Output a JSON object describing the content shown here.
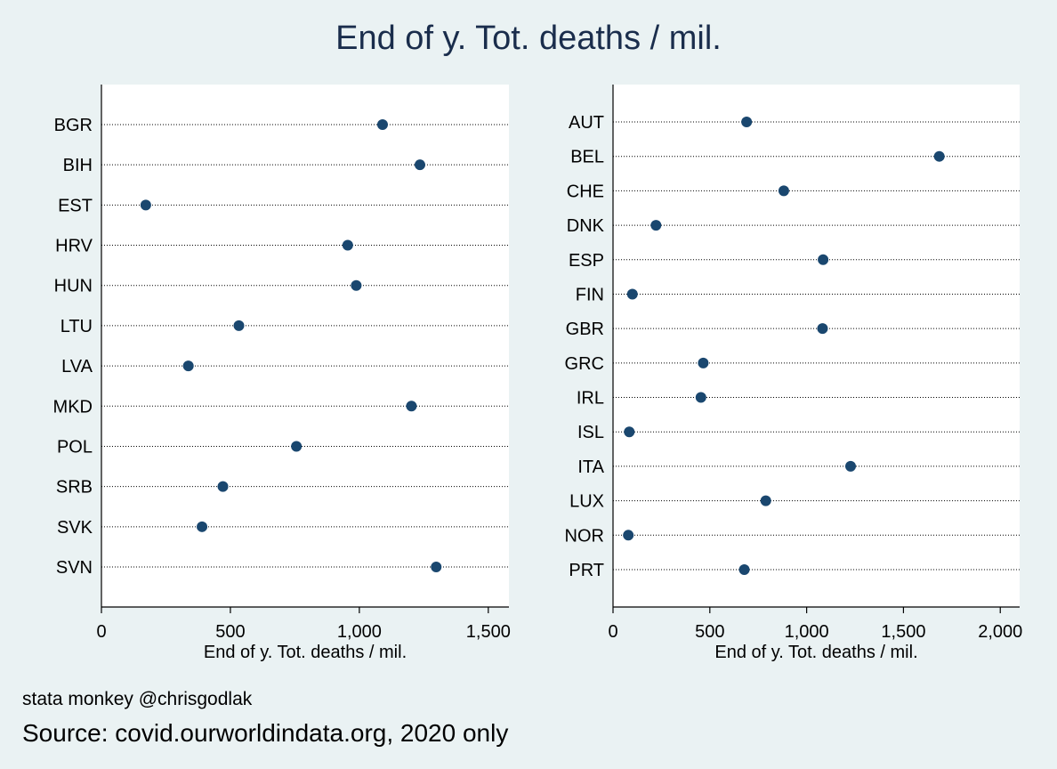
{
  "title": "End of y. Tot. deaths / mil.",
  "note_author": "stata monkey @chrisgodlak",
  "note_source": "Source: covid.ourworldindata.org, 2020 only",
  "colors": {
    "background": "#eaf2f3",
    "plot_background": "#ffffff",
    "marker": "#1a476f",
    "title": "#1a2d4c"
  },
  "chart_data": [
    {
      "type": "scatter",
      "style": "dot plot",
      "xlabel": "End of y. Tot. deaths / mil.",
      "xlim": [
        0,
        1580
      ],
      "xticks": [
        0,
        500,
        1000,
        1500
      ],
      "xtick_labels": [
        "0",
        "500",
        "1,000",
        "1,500"
      ],
      "grid": "dotted horizontal",
      "categories": [
        "BGR",
        "BIH",
        "EST",
        "HRV",
        "HUN",
        "LTU",
        "LVA",
        "MKD",
        "POL",
        "SRB",
        "SVK",
        "SVN"
      ],
      "values": [
        1090,
        1235,
        172,
        955,
        988,
        533,
        337,
        1202,
        756,
        471,
        390,
        1298
      ]
    },
    {
      "type": "scatter",
      "style": "dot plot",
      "xlabel": "End of y. Tot. deaths / mil.",
      "xlim": [
        0,
        2100
      ],
      "xticks": [
        0,
        500,
        1000,
        1500,
        2000
      ],
      "xtick_labels": [
        "0",
        "500",
        "1,000",
        "1,500",
        "2,000"
      ],
      "grid": "dotted horizontal",
      "categories": [
        "AUT",
        "BEL",
        "CHE",
        "DNK",
        "ESP",
        "FIN",
        "GBR",
        "GRC",
        "IRL",
        "ISL",
        "ITA",
        "LUX",
        "NOR",
        "PRT"
      ],
      "values": [
        690,
        1685,
        882,
        222,
        1085,
        100,
        1082,
        466,
        454,
        84,
        1227,
        789,
        79,
        678
      ]
    }
  ]
}
